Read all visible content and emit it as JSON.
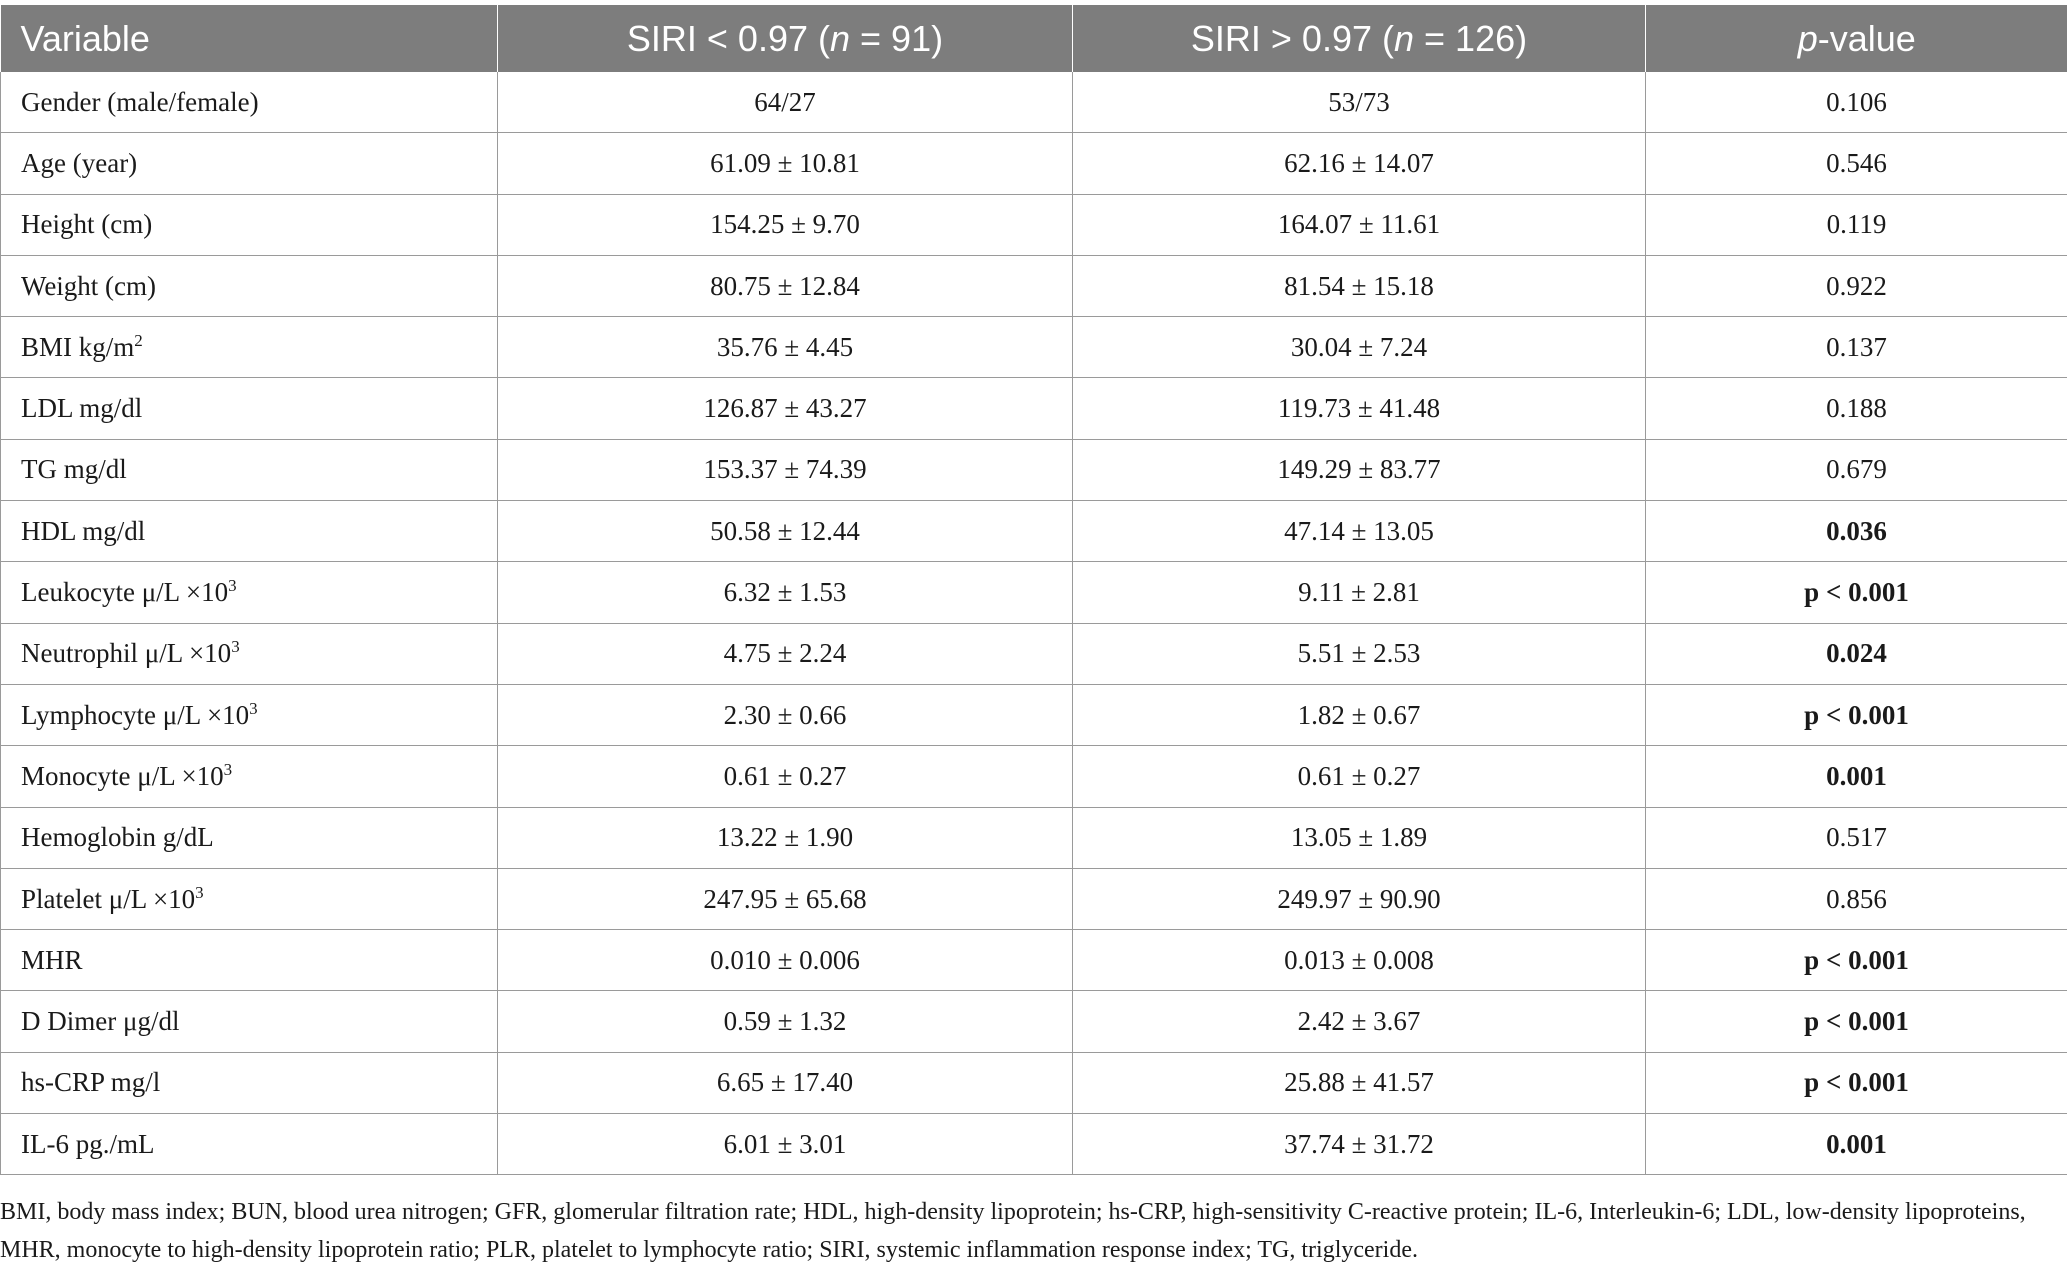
{
  "header": {
    "col_variable": "Variable",
    "col_low_prefix": "SIRI < 0.97 (",
    "col_low_n": "n",
    "col_low_suffix": " = 91)",
    "col_high_prefix": "SIRI > 0.97 (",
    "col_high_n": "n",
    "col_high_suffix": " = 126)",
    "col_p_italic": "p",
    "col_p_suffix": "-value"
  },
  "rows": [
    {
      "variable": "Gender (male/female)",
      "sup": "",
      "low": "64/27",
      "high": "53/73",
      "p": "0.106",
      "bold": false
    },
    {
      "variable": "Age (year)",
      "sup": "",
      "low": "61.09 ± 10.81",
      "high": "62.16 ± 14.07",
      "p": "0.546",
      "bold": false
    },
    {
      "variable": "Height (cm)",
      "sup": "",
      "low": "154.25 ± 9.70",
      "high": "164.07 ± 11.61",
      "p": "0.119",
      "bold": false
    },
    {
      "variable": "Weight (cm)",
      "sup": "",
      "low": "80.75 ± 12.84",
      "high": "81.54 ± 15.18",
      "p": "0.922",
      "bold": false
    },
    {
      "variable": "BMI kg/m",
      "sup": "2",
      "low": "35.76 ± 4.45",
      "high": "30.04 ± 7.24",
      "p": "0.137",
      "bold": false
    },
    {
      "variable": "LDL mg/dl",
      "sup": "",
      "low": "126.87 ± 43.27",
      "high": "119.73 ± 41.48",
      "p": "0.188",
      "bold": false
    },
    {
      "variable": "TG mg/dl",
      "sup": "",
      "low": "153.37 ± 74.39",
      "high": "149.29 ± 83.77",
      "p": "0.679",
      "bold": false
    },
    {
      "variable": "HDL mg/dl",
      "sup": "",
      "low": "50.58 ± 12.44",
      "high": "47.14 ± 13.05",
      "p": "0.036",
      "bold": true
    },
    {
      "variable": "Leukocyte μ/L ×10",
      "sup": "3",
      "low": "6.32 ± 1.53",
      "high": "9.11 ± 2.81",
      "p": "p < 0.001",
      "bold": true
    },
    {
      "variable": "Neutrophil μ/L ×10",
      "sup": "3",
      "low": "4.75 ± 2.24",
      "high": "5.51 ± 2.53",
      "p": "0.024",
      "bold": true
    },
    {
      "variable": "Lymphocyte μ/L ×10",
      "sup": "3",
      "low": "2.30 ± 0.66",
      "high": "1.82 ± 0.67",
      "p": "p < 0.001",
      "bold": true
    },
    {
      "variable": "Monocyte μ/L ×10",
      "sup": "3",
      "low": "0.61 ± 0.27",
      "high": "0.61 ± 0.27",
      "p": "0.001",
      "bold": true
    },
    {
      "variable": "Hemoglobin g/dL",
      "sup": "",
      "low": "13.22 ± 1.90",
      "high": "13.05 ± 1.89",
      "p": "0.517",
      "bold": false
    },
    {
      "variable": "Platelet μ/L ×10",
      "sup": "3",
      "low": "247.95 ± 65.68",
      "high": "249.97 ± 90.90",
      "p": "0.856",
      "bold": false
    },
    {
      "variable": "MHR",
      "sup": "",
      "low": "0.010 ± 0.006",
      "high": "0.013 ± 0.008",
      "p": "p < 0.001",
      "bold": true
    },
    {
      "variable": "D Dimer μg/dl",
      "sup": "",
      "low": "0.59 ± 1.32",
      "high": "2.42 ± 3.67",
      "p": "p < 0.001",
      "bold": true
    },
    {
      "variable": "hs-CRP mg/l",
      "sup": "",
      "low": "6.65 ± 17.40",
      "high": "25.88 ± 41.57",
      "p": "p < 0.001",
      "bold": true
    },
    {
      "variable": "IL-6 pg./mL",
      "sup": "",
      "low": "6.01 ± 3.01",
      "high": "37.74 ± 31.72",
      "p": "0.001",
      "bold": true
    }
  ],
  "footnote": "BMI, body mass index; BUN, blood urea nitrogen; GFR, glomerular filtration rate; HDL, high-density lipoprotein; hs-CRP, high-sensitivity C-reactive protein; IL-6, Interleukin-6; LDL, low-density lipoproteins, MHR, monocyte to high-density lipoprotein ratio; PLR, platelet to lymphocyte ratio; SIRI, systemic inflammation response index; TG, triglyceride.",
  "colors": {
    "header_bg": "#7d7d7d",
    "header_text": "#ffffff",
    "border": "#9a9a9a"
  }
}
